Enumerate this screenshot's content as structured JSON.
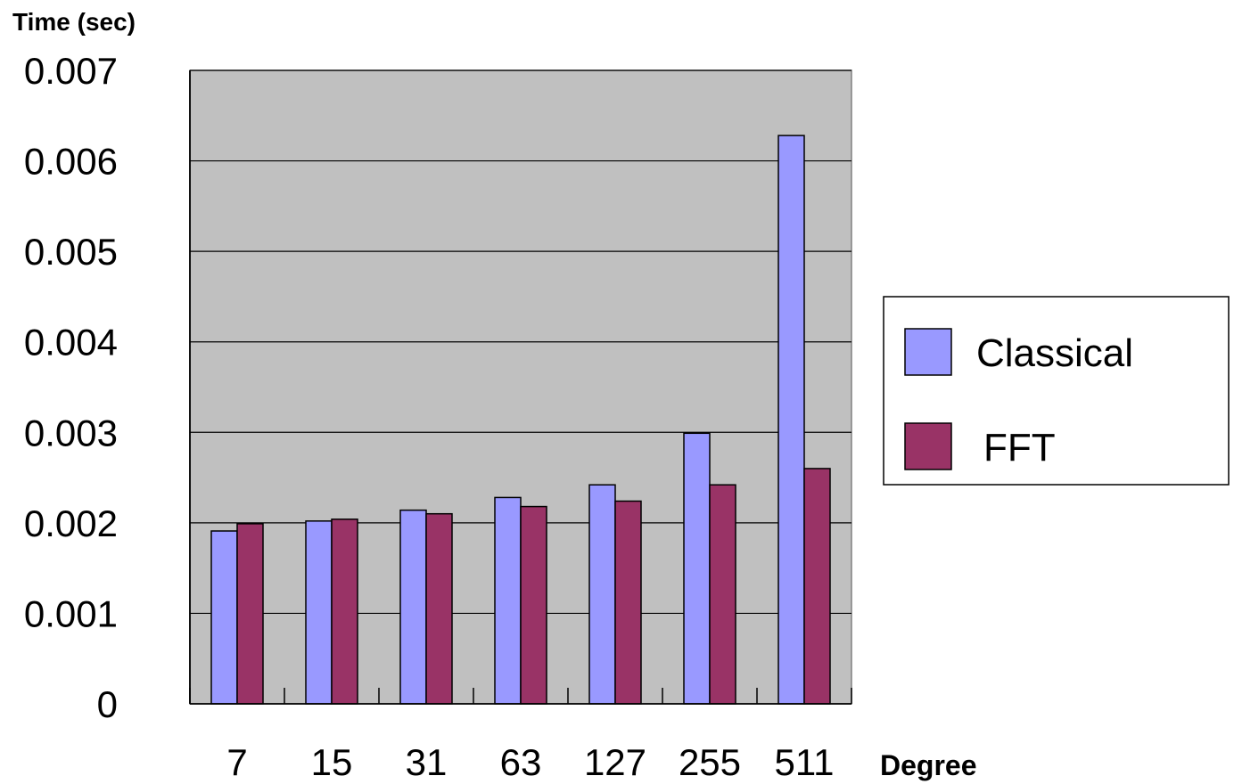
{
  "chart_data": {
    "type": "bar",
    "ylabel": "Time (sec)",
    "xlabel": "Degree",
    "categories": [
      "7",
      "15",
      "31",
      "63",
      "127",
      "255",
      "511"
    ],
    "series": [
      {
        "name": "Classical",
        "color": "#9999ff",
        "values": [
          0.00191,
          0.00202,
          0.00214,
          0.00228,
          0.00242,
          0.00299,
          0.00628
        ]
      },
      {
        "name": "FFT",
        "color": "#993366",
        "values": [
          0.00199,
          0.00204,
          0.0021,
          0.00218,
          0.00224,
          0.00242,
          0.0026
        ]
      }
    ],
    "ylim": [
      0,
      0.007
    ],
    "yticks": [
      "0",
      "0.001",
      "0.002",
      "0.003",
      "0.004",
      "0.005",
      "0.006",
      "0.007"
    ],
    "plot_background": "#c0c0c0",
    "grid": true,
    "legend_position": "right"
  }
}
